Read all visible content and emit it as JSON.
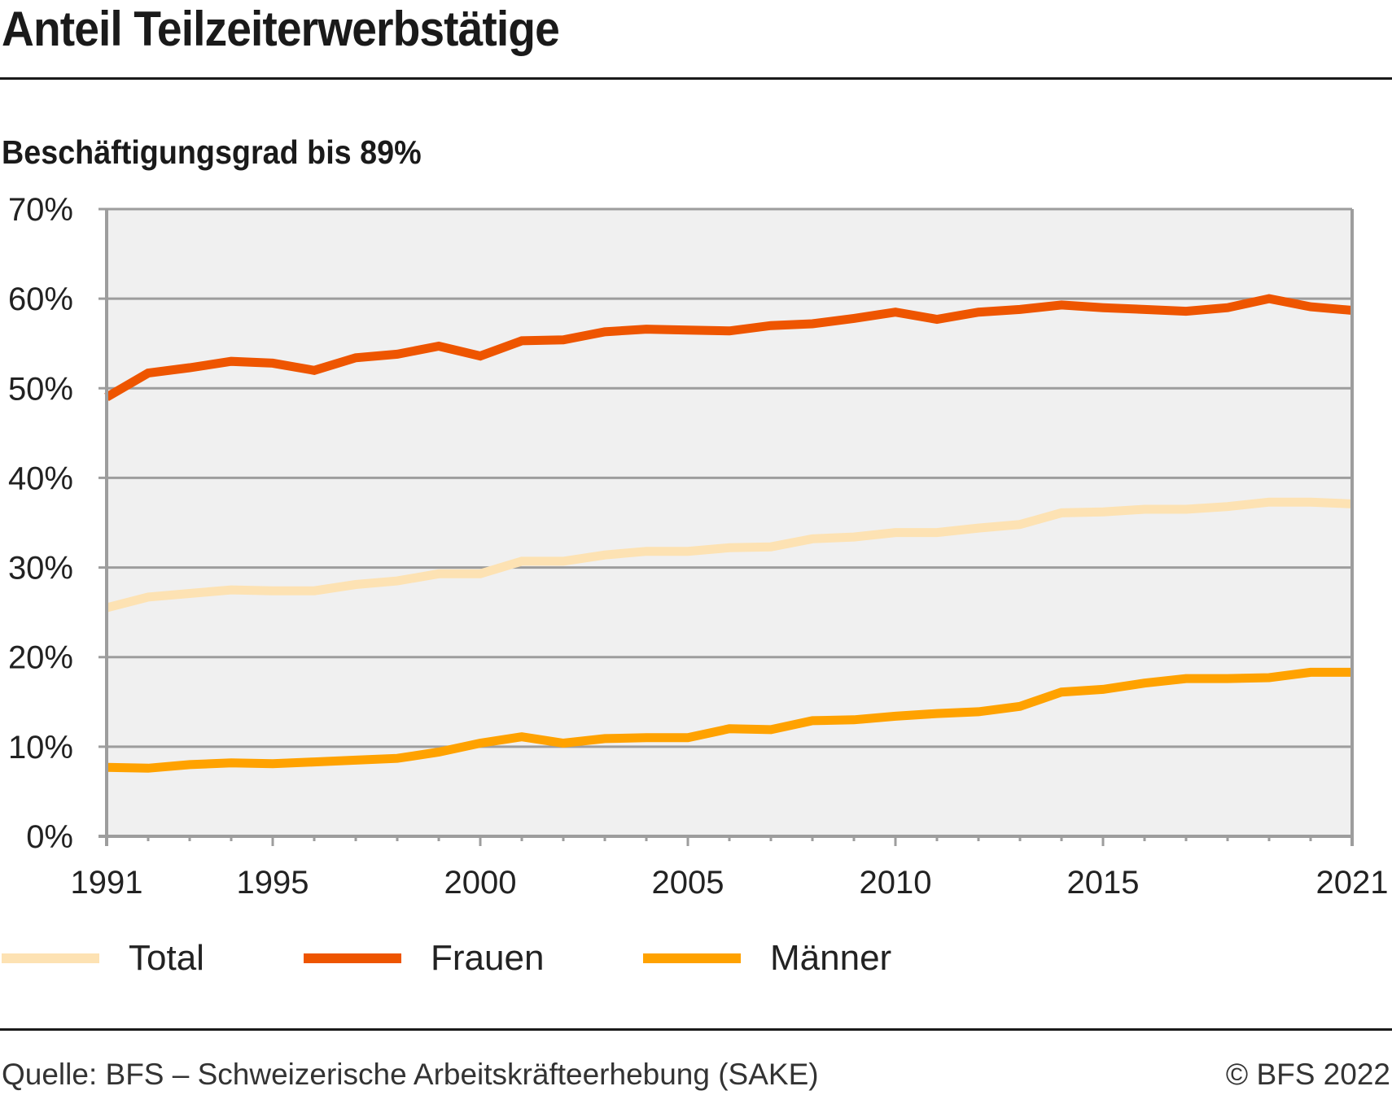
{
  "header": {
    "title": "Anteil Teilzeiterwerbstätige",
    "subtitle": "Beschäftigungsgrad bis 89%"
  },
  "footer": {
    "source": "Quelle: BFS – Schweizerische Arbeitskräfteerhebung (SAKE)",
    "copyright": "© BFS 2022"
  },
  "chart_data": {
    "type": "line",
    "title": "Anteil Teilzeiterwerbstätige",
    "subtitle": "Beschäftigungsgrad bis 89%",
    "xlabel": "",
    "ylabel": "",
    "x": [
      1991,
      1992,
      1993,
      1994,
      1995,
      1996,
      1997,
      1998,
      1999,
      2000,
      2001,
      2002,
      2003,
      2004,
      2005,
      2006,
      2007,
      2008,
      2009,
      2010,
      2011,
      2012,
      2013,
      2014,
      2015,
      2016,
      2017,
      2018,
      2019,
      2020,
      2021
    ],
    "xlim": [
      1991,
      2021
    ],
    "x_tick_labels": [
      "1991",
      "1995",
      "2000",
      "2005",
      "2010",
      "2015",
      "2021"
    ],
    "x_tick_values": [
      1991,
      1995,
      2000,
      2005,
      2010,
      2015,
      2021
    ],
    "ylim": [
      0,
      70
    ],
    "y_tick_values": [
      0,
      10,
      20,
      30,
      40,
      50,
      60,
      70
    ],
    "y_tick_labels": [
      "0%",
      "10%",
      "20%",
      "30%",
      "40%",
      "50%",
      "60%",
      "70%"
    ],
    "grid": true,
    "legend_position": "bottom",
    "plot_background": "#f0f0f0",
    "series": [
      {
        "name": "Total",
        "color": "#fde2b3",
        "values": [
          25.5,
          26.7,
          27.1,
          27.5,
          27.4,
          27.4,
          28.1,
          28.5,
          29.3,
          29.3,
          30.7,
          30.7,
          31.4,
          31.8,
          31.8,
          32.2,
          32.3,
          33.2,
          33.4,
          33.9,
          33.9,
          34.4,
          34.8,
          36.1,
          36.2,
          36.5,
          36.5,
          36.8,
          37.3,
          37.3,
          37.1
        ]
      },
      {
        "name": "Frauen",
        "color": "#ee5500",
        "values": [
          49.0,
          51.7,
          52.3,
          53.0,
          52.8,
          52.0,
          53.4,
          53.8,
          54.7,
          53.6,
          55.3,
          55.4,
          56.3,
          56.6,
          56.5,
          56.4,
          57.0,
          57.2,
          57.8,
          58.5,
          57.7,
          58.5,
          58.8,
          59.3,
          59.0,
          58.8,
          58.6,
          59.0,
          60.0,
          59.1,
          58.7
        ]
      },
      {
        "name": "Männer",
        "color": "#ffa200",
        "values": [
          7.7,
          7.6,
          8.0,
          8.2,
          8.1,
          8.3,
          8.5,
          8.7,
          9.4,
          10.4,
          11.1,
          10.4,
          10.9,
          11.0,
          11.0,
          12.0,
          11.9,
          12.9,
          13.0,
          13.4,
          13.7,
          13.9,
          14.5,
          16.1,
          16.4,
          17.1,
          17.6,
          17.6,
          17.7,
          18.3,
          18.3
        ]
      }
    ]
  }
}
